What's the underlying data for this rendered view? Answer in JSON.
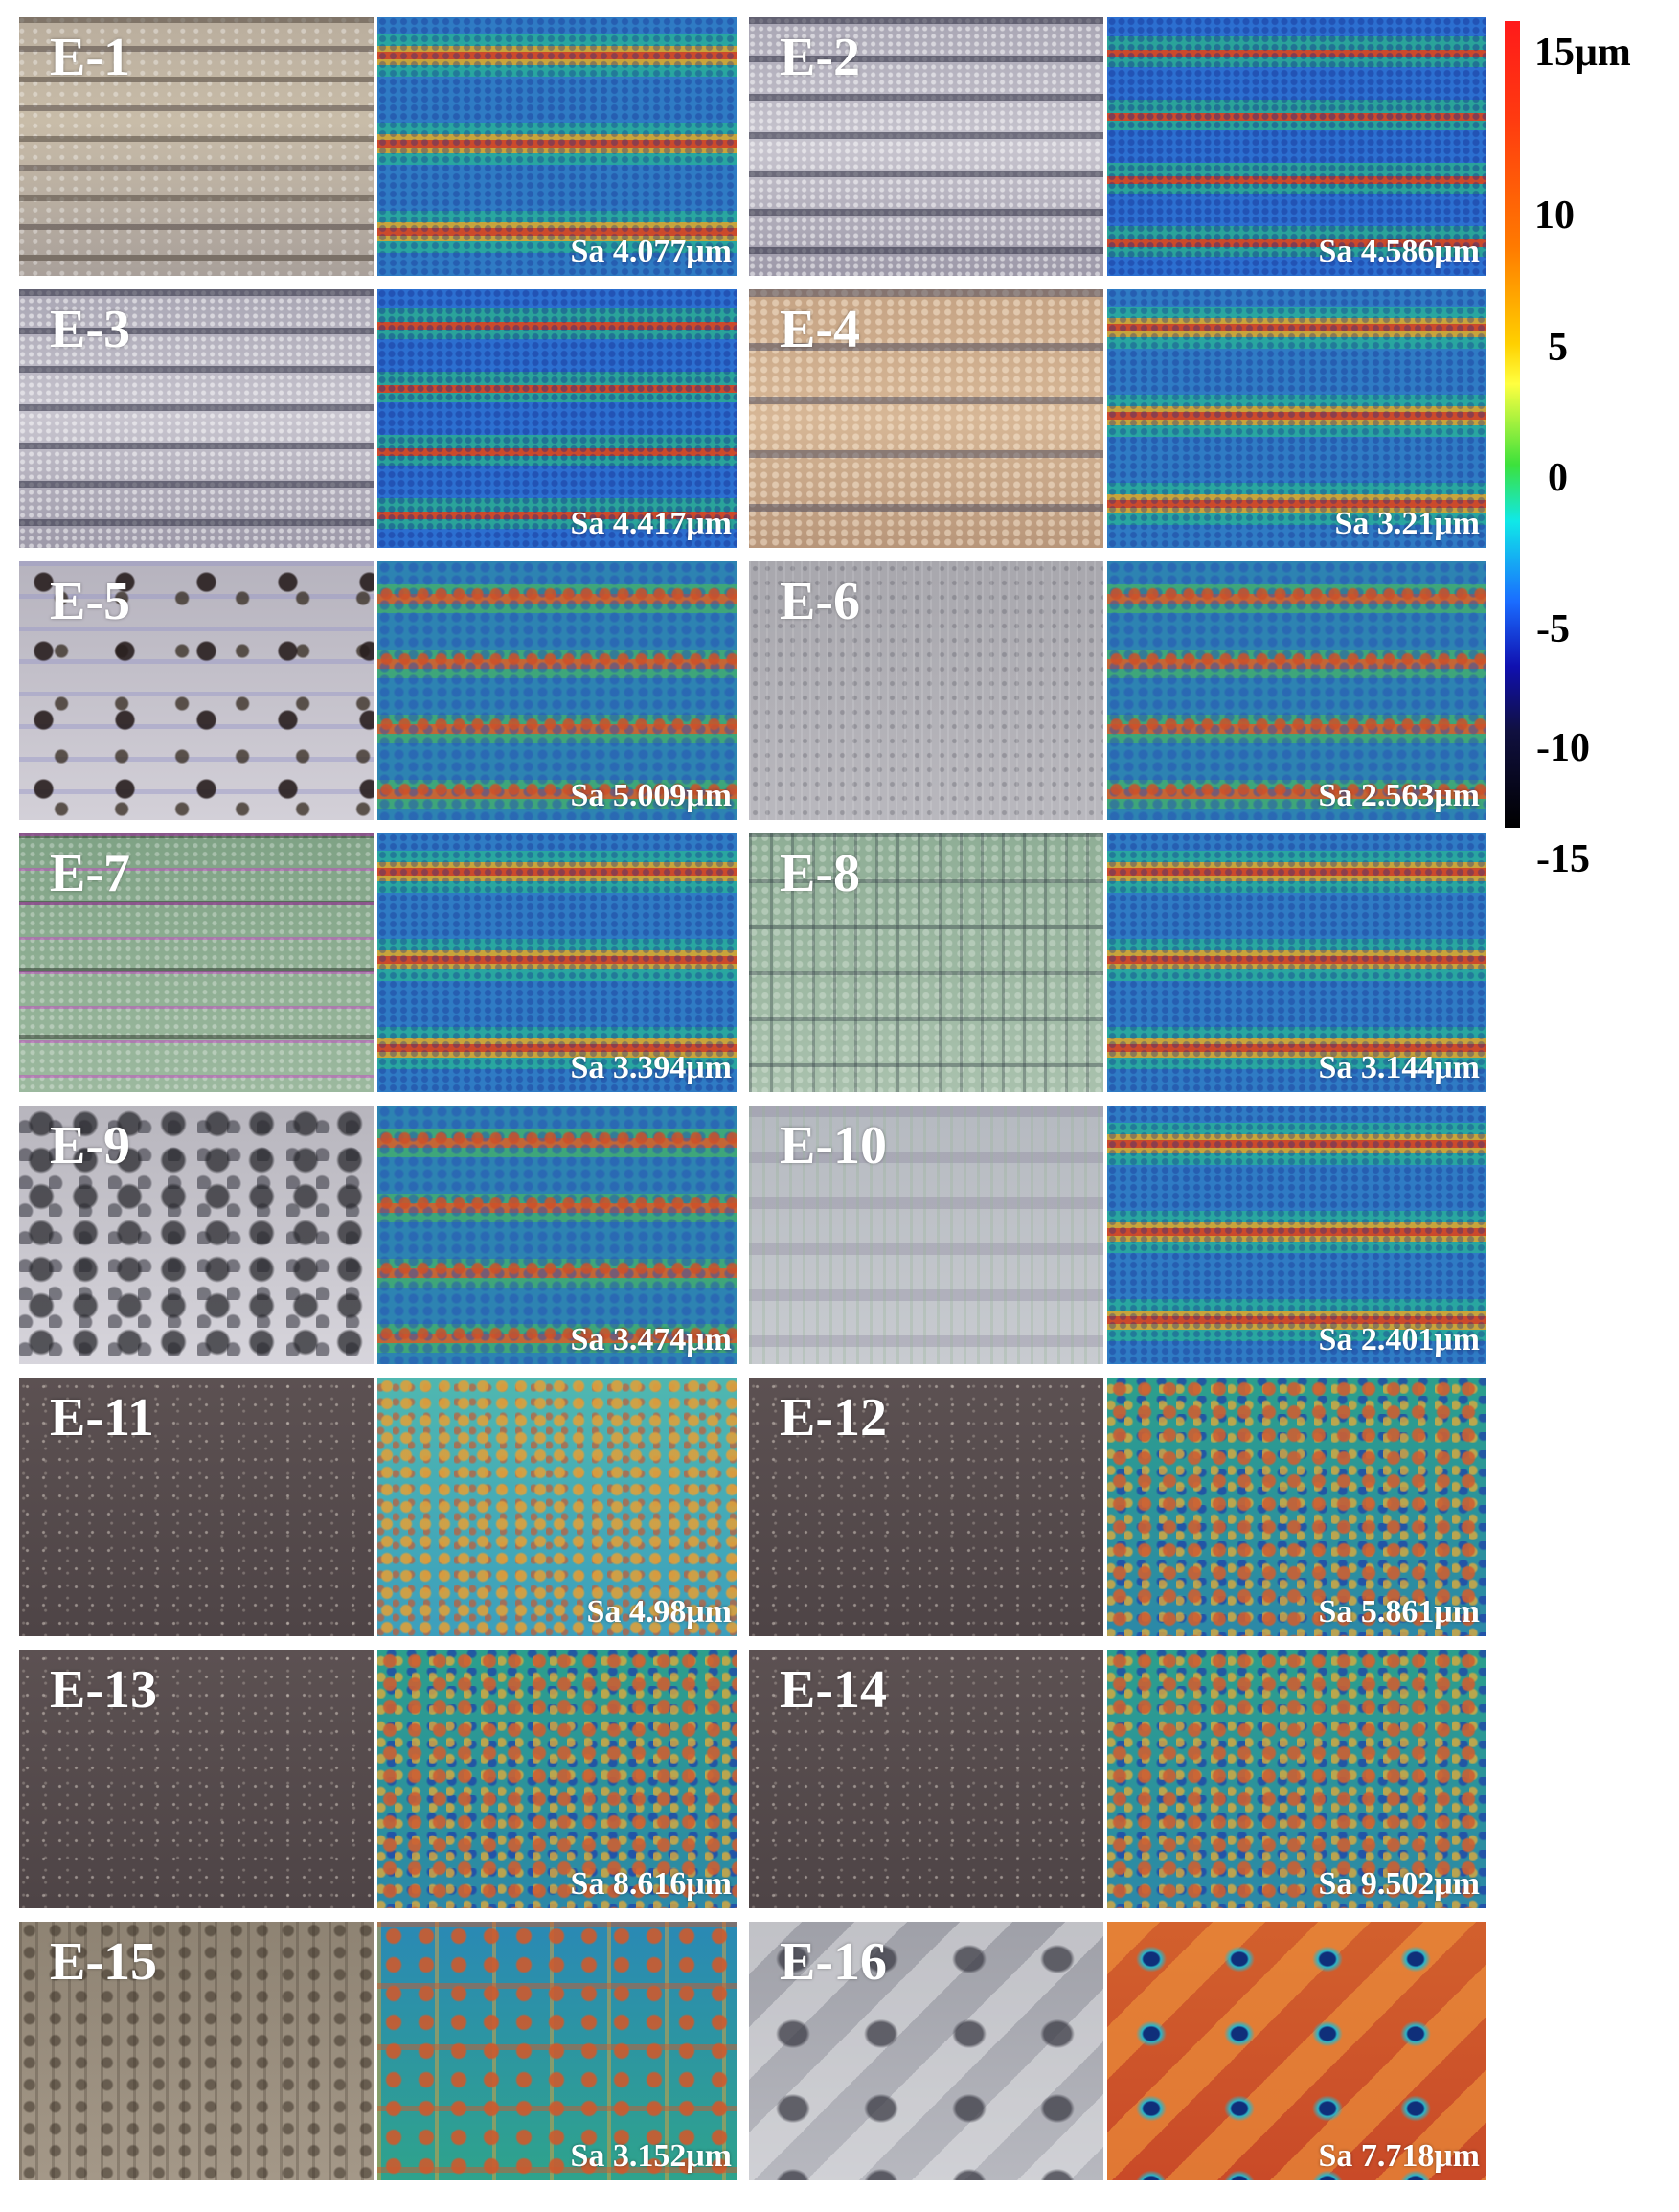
{
  "samples": [
    {
      "label": "E-1",
      "sa": "Sa 4.077μm"
    },
    {
      "label": "E-2",
      "sa": "Sa 4.586μm"
    },
    {
      "label": "E-3",
      "sa": "Sa 4.417μm"
    },
    {
      "label": "E-4",
      "sa": "Sa 3.21μm"
    },
    {
      "label": "E-5",
      "sa": "Sa 5.009μm"
    },
    {
      "label": "E-6",
      "sa": "Sa 2.563μm"
    },
    {
      "label": "E-7",
      "sa": "Sa 3.394μm"
    },
    {
      "label": "E-8",
      "sa": "Sa 3.144μm"
    },
    {
      "label": "E-9",
      "sa": "Sa 3.474μm"
    },
    {
      "label": "E-10",
      "sa": "Sa 2.401μm"
    },
    {
      "label": "E-11",
      "sa": "Sa 4.98μm"
    },
    {
      "label": "E-12",
      "sa": "Sa 5.861μm"
    },
    {
      "label": "E-13",
      "sa": "Sa 8.616μm"
    },
    {
      "label": "E-14",
      "sa": "Sa 9.502μm"
    },
    {
      "label": "E-15",
      "sa": "Sa 3.152μm"
    },
    {
      "label": "E-16",
      "sa": "Sa 7.718μm"
    }
  ],
  "colorbar": {
    "ticks": [
      "15μm",
      "10",
      "5",
      "0",
      "-5",
      "-10",
      "-15"
    ],
    "colors": [
      "#ff1a1a",
      "#ff7a00",
      "#ffff40",
      "#3ce13c",
      "#10e8e8",
      "#1a6cff",
      "#000000"
    ]
  }
}
